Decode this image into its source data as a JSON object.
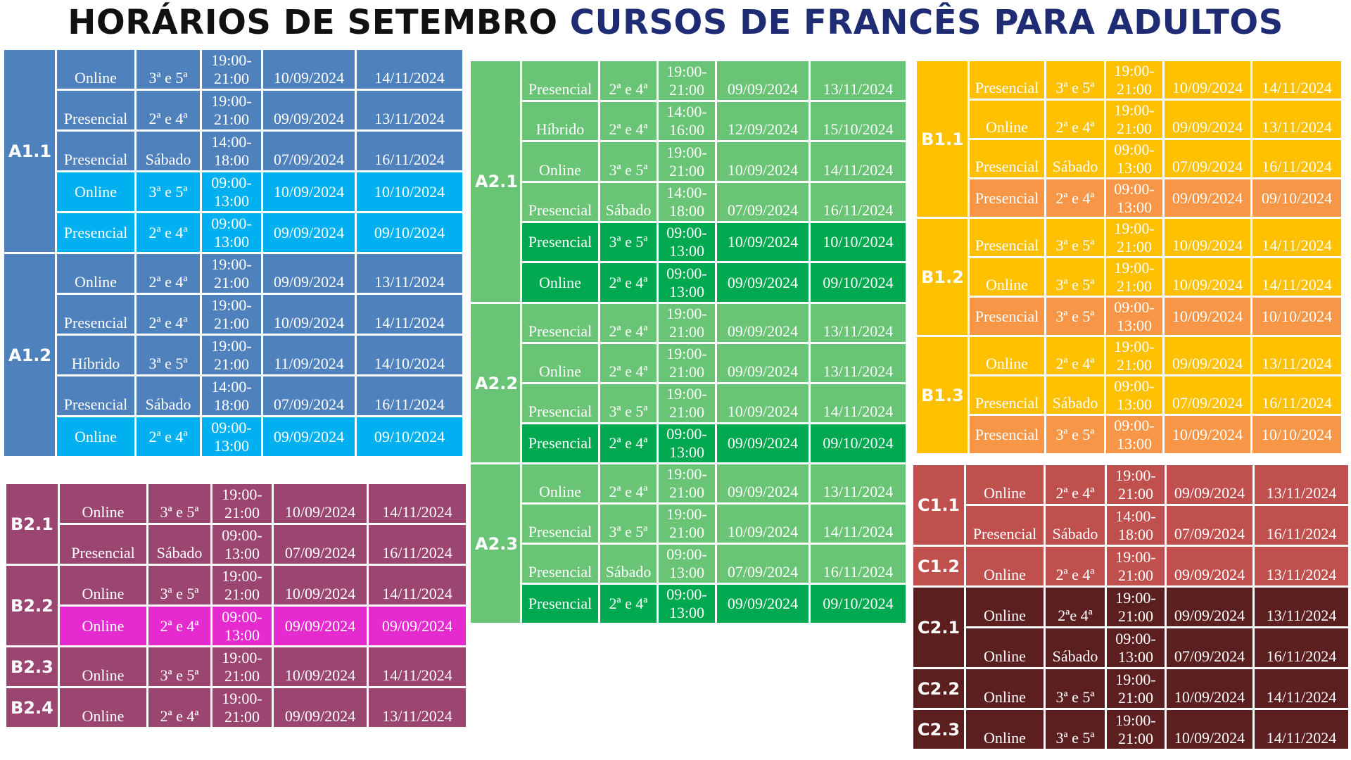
{
  "title": {
    "part1": "HORÁRIOS DE SETEMBRO",
    "part2": "CURSOS DE FRANCÊS PARA ADULTOS"
  },
  "colors": {
    "a1_bg": "#4f81bd",
    "a1_hi": "#00b0f0",
    "a2_bg": "#69c475",
    "a2_hi": "#00a84f",
    "b1_bg": "#ffc000",
    "b1_hi": "#f79646",
    "b2_bg": "#9a4670",
    "b2_hi": "#e52ad0",
    "c1_bg": "#c0504d",
    "c2_bg": "#5c1f1f"
  },
  "blocks": [
    {
      "key": "a1",
      "levels": [
        {
          "name": "A1.1",
          "rows": [
            {
              "mode": "Online",
              "days": "3ª e 5ª",
              "h1": "19:00-",
              "h2": "21:00",
              "start": "10/09/2024",
              "end": "14/11/2024",
              "hi": false
            },
            {
              "mode": "Presencial",
              "days": "2ª e 4ª",
              "h1": "19:00-",
              "h2": "21:00",
              "start": "09/09/2024",
              "end": "13/11/2024",
              "hi": false
            },
            {
              "mode": "Presencial",
              "days": "Sábado",
              "h1": "14:00-",
              "h2": "18:00",
              "start": "07/09/2024",
              "end": "16/11/2024",
              "hi": false
            },
            {
              "mode": "Online",
              "days": "3ª e 5ª",
              "h1": "09:00-",
              "h2": "13:00",
              "start": "10/09/2024",
              "end": "10/10/2024",
              "hi": true
            },
            {
              "mode": "Presencial",
              "days": "2ª e 4ª",
              "h1": "09:00-",
              "h2": "13:00",
              "start": "09/09/2024",
              "end": "09/10/2024",
              "hi": true
            }
          ]
        },
        {
          "name": "A1.2",
          "rows": [
            {
              "mode": "Online",
              "days": "2ª e 4ª",
              "h1": "19:00-",
              "h2": "21:00",
              "start": "09/09/2024",
              "end": "13/11/2024",
              "hi": false
            },
            {
              "mode": "Presencial",
              "days": "2ª e 4ª",
              "h1": "19:00-",
              "h2": "21:00",
              "start": "10/09/2024",
              "end": "14/11/2024",
              "hi": false
            },
            {
              "mode": "Híbrido",
              "days": "3ª e 5ª",
              "h1": "19:00-",
              "h2": "21:00",
              "start": "11/09/2024",
              "end": "14/10/2024",
              "hi": false
            },
            {
              "mode": "Presencial",
              "days": "Sábado",
              "h1": "14:00-",
              "h2": "18:00",
              "start": "07/09/2024",
              "end": "16/11/2024",
              "hi": false
            },
            {
              "mode": "Online",
              "days": "2ª e 4ª",
              "h1": "09:00-",
              "h2": "13:00",
              "start": "09/09/2024",
              "end": "09/10/2024",
              "hi": true
            }
          ]
        }
      ]
    },
    {
      "key": "a2",
      "levels": [
        {
          "name": "A2.1",
          "rows": [
            {
              "mode": "Presencial",
              "days": "2ª e 4ª",
              "h1": "19:00-",
              "h2": "21:00",
              "start": "09/09/2024",
              "end": "13/11/2024",
              "hi": false
            },
            {
              "mode": "Híbrido",
              "days": "2ª e 4ª",
              "h1": "14:00-",
              "h2": "16:00",
              "start": "12/09/2024",
              "end": "15/10/2024",
              "hi": false
            },
            {
              "mode": "Online",
              "days": "3ª e 5ª",
              "h1": "19:00-",
              "h2": "21:00",
              "start": "10/09/2024",
              "end": "14/11/2024",
              "hi": false
            },
            {
              "mode": "Presencial",
              "days": "Sábado",
              "h1": "14:00-",
              "h2": "18:00",
              "start": "07/09/2024",
              "end": "16/11/2024",
              "hi": false
            },
            {
              "mode": "Presencial",
              "days": "3ª e 5ª",
              "h1": "09:00-",
              "h2": "13:00",
              "start": "10/09/2024",
              "end": "10/10/2024",
              "hi": true
            },
            {
              "mode": "Online",
              "days": "2ª e 4ª",
              "h1": "09:00-",
              "h2": "13:00",
              "start": "09/09/2024",
              "end": "09/10/2024",
              "hi": true
            }
          ]
        },
        {
          "name": "A2.2",
          "rows": [
            {
              "mode": "Presencial",
              "days": "2ª e 4ª",
              "h1": "19:00-",
              "h2": "21:00",
              "start": "09/09/2024",
              "end": "13/11/2024",
              "hi": false
            },
            {
              "mode": "Online",
              "days": "2ª e 4ª",
              "h1": "19:00-",
              "h2": "21:00",
              "start": "09/09/2024",
              "end": "13/11/2024",
              "hi": false
            },
            {
              "mode": "Presencial",
              "days": "3ª e 5ª",
              "h1": "19:00-",
              "h2": "21:00",
              "start": "10/09/2024",
              "end": "14/11/2024",
              "hi": false
            },
            {
              "mode": "Presencial",
              "days": "2ª e 4ª",
              "h1": "09:00-",
              "h2": "13:00",
              "start": "09/09/2024",
              "end": "09/10/2024",
              "hi": true
            }
          ]
        },
        {
          "name": "A2.3",
          "rows": [
            {
              "mode": "Online",
              "days": "2ª e 4ª",
              "h1": "19:00-",
              "h2": "21:00",
              "start": "09/09/2024",
              "end": "13/11/2024",
              "hi": false
            },
            {
              "mode": "Presencial",
              "days": "3ª e 5ª",
              "h1": "19:00-",
              "h2": "21:00",
              "start": "10/09/2024",
              "end": "14/11/2024",
              "hi": false
            },
            {
              "mode": "Presencial",
              "days": "Sábado",
              "h1": "09:00-",
              "h2": "13:00",
              "start": "07/09/2024",
              "end": "16/11/2024",
              "hi": false
            },
            {
              "mode": "Presencial",
              "days": "2ª e 4ª",
              "h1": "09:00-",
              "h2": "13:00",
              "start": "09/09/2024",
              "end": "09/10/2024",
              "hi": true
            }
          ]
        }
      ]
    },
    {
      "key": "b1",
      "levels": [
        {
          "name": "B1.1",
          "rows": [
            {
              "mode": "Presencial",
              "days": "3ª e 5ª",
              "h1": "19:00-",
              "h2": "21:00",
              "start": "10/09/2024",
              "end": "14/11/2024",
              "hi": false
            },
            {
              "mode": "Online",
              "days": "2ª e 4ª",
              "h1": "19:00-",
              "h2": "21:00",
              "start": "09/09/2024",
              "end": "13/11/2024",
              "hi": false
            },
            {
              "mode": "Presencial",
              "days": "Sábado",
              "h1": "09:00-",
              "h2": "13:00",
              "start": "07/09/2024",
              "end": "16/11/2024",
              "hi": false
            },
            {
              "mode": "Presencial",
              "days": "2ª e 4ª",
              "h1": "09:00-",
              "h2": "13:00",
              "start": "09/09/2024",
              "end": "09/10/2024",
              "hi": true
            }
          ]
        },
        {
          "name": "B1.2",
          "rows": [
            {
              "mode": "Presencial",
              "days": "3ª e 5ª",
              "h1": "19:00-",
              "h2": "21:00",
              "start": "10/09/2024",
              "end": "14/11/2024",
              "hi": false
            },
            {
              "mode": "Online",
              "days": "3ª e 5ª",
              "h1": "19:00-",
              "h2": "21:00",
              "start": "10/09/2024",
              "end": "14/11/2024",
              "hi": false
            },
            {
              "mode": "Presencial",
              "days": "3ª e 5ª",
              "h1": "09:00-",
              "h2": "13:00",
              "start": "10/09/2024",
              "end": "10/10/2024",
              "hi": true
            }
          ]
        },
        {
          "name": "B1.3",
          "rows": [
            {
              "mode": "Online",
              "days": "2ª e 4ª",
              "h1": "19:00-",
              "h2": "21:00",
              "start": "09/09/2024",
              "end": "13/11/2024",
              "hi": false
            },
            {
              "mode": "Presencial",
              "days": "Sábado",
              "h1": "09:00-",
              "h2": "13:00",
              "start": "07/09/2024",
              "end": "16/11/2024",
              "hi": false
            },
            {
              "mode": "Presencial",
              "days": "3ª e 5ª",
              "h1": "09:00-",
              "h2": "13:00",
              "start": "10/09/2024",
              "end": "10/10/2024",
              "hi": true
            }
          ]
        }
      ]
    },
    {
      "key": "b2",
      "levels": [
        {
          "name": "B2.1",
          "rows": [
            {
              "mode": "Online",
              "days": "3ª e 5ª",
              "h1": "19:00-",
              "h2": "21:00",
              "start": "10/09/2024",
              "end": "14/11/2024",
              "hi": false
            },
            {
              "mode": "Presencial",
              "days": "Sábado",
              "h1": "09:00-",
              "h2": "13:00",
              "start": "07/09/2024",
              "end": "16/11/2024",
              "hi": false
            }
          ]
        },
        {
          "name": "B2.2",
          "rows": [
            {
              "mode": "Online",
              "days": "3ª e 5ª",
              "h1": "19:00-",
              "h2": "21:00",
              "start": "10/09/2024",
              "end": "14/11/2024",
              "hi": false
            },
            {
              "mode": "Online",
              "days": "2ª e 4ª",
              "h1": "09:00-",
              "h2": "13:00",
              "start": "09/09/2024",
              "end": "09/09/2024",
              "hi": true
            }
          ]
        },
        {
          "name": "B2.3",
          "rows": [
            {
              "mode": "Online",
              "days": "3ª e 5ª",
              "h1": "19:00-",
              "h2": "21:00",
              "start": "10/09/2024",
              "end": "14/11/2024",
              "hi": false
            }
          ]
        },
        {
          "name": "B2.4",
          "rows": [
            {
              "mode": "Online",
              "days": "2ª e 4ª",
              "h1": "19:00-",
              "h2": "21:00",
              "start": "09/09/2024",
              "end": "13/11/2024",
              "hi": false
            }
          ]
        }
      ]
    },
    {
      "key": "c",
      "levels": [
        {
          "name": "C1.1",
          "tone": "c1",
          "rows": [
            {
              "mode": "Online",
              "days": "2ª e 4ª",
              "h1": "19:00-",
              "h2": "21:00",
              "start": "09/09/2024",
              "end": "13/11/2024",
              "hi": false
            },
            {
              "mode": "Presencial",
              "days": "Sábado",
              "h1": "14:00-",
              "h2": "18:00",
              "start": "07/09/2024",
              "end": "16/11/2024",
              "hi": false
            }
          ]
        },
        {
          "name": "C1.2",
          "tone": "c1",
          "rows": [
            {
              "mode": "Online",
              "days": "2ª e 4ª",
              "h1": "19:00-",
              "h2": "21:00",
              "start": "09/09/2024",
              "end": "13/11/2024",
              "hi": false
            }
          ]
        },
        {
          "name": "C2.1",
          "tone": "c2",
          "rows": [
            {
              "mode": "Online",
              "days": "2ªe 4ª",
              "h1": "19:00-",
              "h2": "21:00",
              "start": "09/09/2024",
              "end": "13/11/2024",
              "hi": false
            },
            {
              "mode": "Online",
              "days": "Sábado",
              "h1": "09:00-",
              "h2": "13:00",
              "start": "07/09/2024",
              "end": "16/11/2024",
              "hi": false
            }
          ]
        },
        {
          "name": "C2.2",
          "tone": "c2",
          "rows": [
            {
              "mode": "Online",
              "days": "3ª e 5ª",
              "h1": "19:00-",
              "h2": "21:00",
              "start": "10/09/2024",
              "end": "14/11/2024",
              "hi": false
            }
          ]
        },
        {
          "name": "C2.3",
          "tone": "c2",
          "rows": [
            {
              "mode": "Online",
              "days": "3ª e 5ª",
              "h1": "19:00-",
              "h2": "21:00",
              "start": "10/09/2024",
              "end": "14/11/2024",
              "hi": false
            }
          ]
        }
      ]
    }
  ]
}
